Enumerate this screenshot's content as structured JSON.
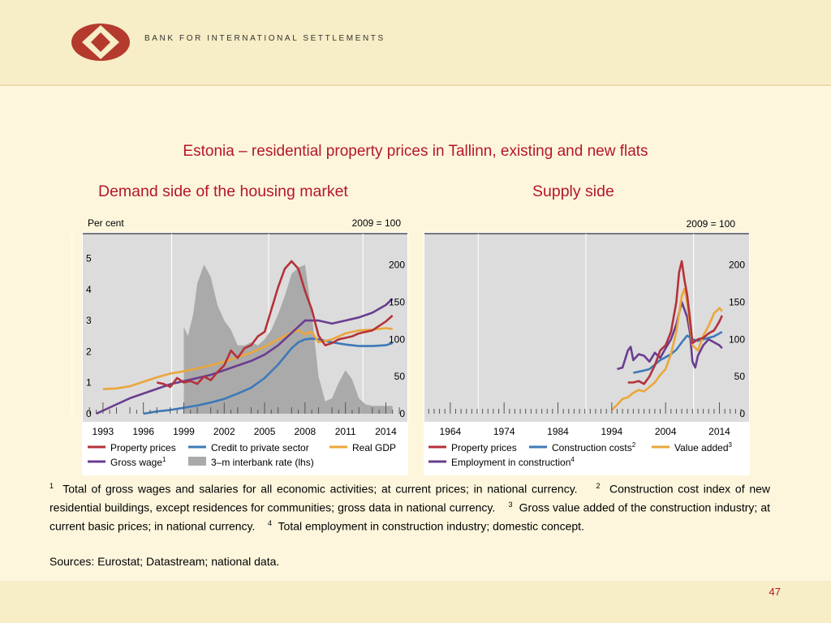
{
  "header": {
    "brand": "BANK FOR INTERNATIONAL SETTLEMENTS"
  },
  "title": "Estonia – residential property prices in Tallinn, existing and new flats",
  "colors": {
    "accent": "#b4172b",
    "red": "#b5313a",
    "blue": "#3d79b8",
    "orange": "#eba63b",
    "purple": "#6a3d8f",
    "grey": "#aaaaaa"
  },
  "chart_data": [
    {
      "type": "line",
      "title": "Demand side of the housing market",
      "left_axis_unit": "Per cent",
      "right_axis_unit": "2009 = 100",
      "x_ticks": [
        "1993",
        "1996",
        "1999",
        "2002",
        "2005",
        "2008",
        "2011",
        "2014"
      ],
      "ylim_left": [
        0,
        5.5
      ],
      "yticks_left": [
        "0",
        "1",
        "2",
        "3",
        "4",
        "5"
      ],
      "ylim_right": [
        0,
        220
      ],
      "yticks_right": [
        "0",
        "50",
        "100",
        "150",
        "200"
      ],
      "series": [
        {
          "name": "Property prices",
          "axis": "right",
          "color": "#b5313a",
          "x": [
            1997,
            1997.5,
            1998,
            1998.5,
            1999,
            1999.5,
            2000,
            2000.5,
            2001,
            2001.5,
            2002,
            2002.5,
            2003,
            2003.5,
            2004,
            2004.5,
            2005,
            2005.5,
            2006,
            2006.5,
            2007,
            2007.5,
            2008,
            2008.5,
            2009,
            2009.5,
            2010,
            2010.5,
            2011,
            2011.5,
            2012,
            2012.5,
            2013,
            2013.5,
            2014,
            2014.5
          ],
          "y": [
            42,
            40,
            36,
            48,
            42,
            44,
            40,
            50,
            45,
            56,
            65,
            85,
            75,
            88,
            92,
            104,
            110,
            140,
            170,
            195,
            205,
            195,
            165,
            140,
            105,
            92,
            95,
            100,
            102,
            104,
            108,
            110,
            112,
            118,
            124,
            132
          ]
        },
        {
          "name": "Credit to private sector",
          "axis": "right",
          "color": "#3d79b8",
          "x": [
            1996,
            1997,
            1998,
            1999,
            2000,
            2001,
            2002,
            2003,
            2004,
            2005,
            2006,
            2007,
            2007.5,
            2008,
            2008.5,
            2009,
            2010,
            2011,
            2012,
            2013,
            2014,
            2014.5
          ],
          "y": [
            0,
            3,
            5,
            8,
            11,
            15,
            20,
            27,
            35,
            48,
            66,
            88,
            96,
            100,
            101,
            100,
            96,
            93,
            91,
            91,
            92,
            95
          ]
        },
        {
          "name": "Real GDP",
          "axis": "right",
          "color": "#eba63b",
          "x": [
            1993,
            1994,
            1995,
            1996,
            1997,
            1998,
            1999,
            2000,
            2001,
            2002,
            2003,
            2004,
            2005,
            2006,
            2007,
            2007.5,
            2008,
            2008.5,
            2009,
            2010,
            2011,
            2012,
            2013,
            2014,
            2014.5
          ],
          "y": [
            33,
            34,
            37,
            43,
            49,
            54,
            57,
            61,
            65,
            70,
            76,
            82,
            90,
            100,
            109,
            112,
            107,
            110,
            96,
            100,
            108,
            112,
            113,
            115,
            114
          ]
        },
        {
          "name": "Gross wage",
          "axis": "left",
          "sup": "1",
          "color": "#6a3d8f",
          "x": [
            1992.5,
            1993,
            1994,
            1995,
            1996,
            1997,
            1998,
            1999,
            2000,
            2001,
            2002,
            2003,
            2004,
            2005,
            2006,
            2007,
            2008,
            2009,
            2010,
            2011,
            2012,
            2013,
            2014,
            2014.5
          ],
          "y": [
            0.0,
            0.1,
            0.3,
            0.5,
            0.65,
            0.8,
            0.95,
            1.05,
            1.15,
            1.25,
            1.4,
            1.55,
            1.7,
            1.9,
            2.2,
            2.6,
            3.0,
            3.0,
            2.9,
            3.0,
            3.1,
            3.25,
            3.5,
            3.7
          ]
        },
        {
          "name": "3–m interbank rate (lhs)",
          "axis": "left",
          "type": "area",
          "color": "#aaaaaa",
          "x": [
            1999,
            1999.3,
            1999.7,
            2000,
            2000.5,
            2001,
            2001.5,
            2002,
            2002.5,
            2003,
            2003.5,
            2004,
            2004.5,
            2005,
            2005.5,
            2006,
            2006.5,
            2007,
            2007.5,
            2008,
            2008.5,
            2009,
            2009.5,
            2010,
            2010.5,
            2011,
            2011.5,
            2012,
            2012.5,
            2013,
            2014,
            2014.5
          ],
          "y": [
            2.8,
            2.5,
            3.2,
            4.2,
            4.8,
            4.4,
            3.5,
            3.0,
            2.7,
            2.2,
            2.2,
            2.3,
            2.2,
            2.4,
            2.7,
            3.2,
            3.8,
            4.5,
            4.7,
            4.8,
            3.2,
            1.2,
            0.4,
            0.5,
            1.0,
            1.4,
            1.1,
            0.5,
            0.3,
            0.25,
            0.25,
            0.25
          ]
        }
      ]
    },
    {
      "type": "line",
      "title": "Supply side",
      "right_axis_unit": "2009 = 100",
      "x_ticks": [
        "1964",
        "1974",
        "1984",
        "1994",
        "2004",
        "2014"
      ],
      "ylim_right": [
        0,
        220
      ],
      "yticks_right": [
        "0",
        "50",
        "100",
        "150",
        "200"
      ],
      "series": [
        {
          "name": "Property prices",
          "color": "#b5313a",
          "x": [
            1997,
            1998,
            1999,
            2000,
            2001,
            2002,
            2003,
            2004,
            2005,
            2006,
            2006.5,
            2007,
            2007.5,
            2008,
            2008.5,
            2009,
            2010,
            2011,
            2012,
            2013,
            2014,
            2014.5
          ],
          "y": [
            42,
            42,
            44,
            40,
            50,
            65,
            85,
            92,
            110,
            150,
            190,
            205,
            180,
            160,
            130,
            95,
            100,
            102,
            108,
            112,
            124,
            132
          ]
        },
        {
          "name": "Construction costs",
          "sup": "2",
          "color": "#3d79b8",
          "x": [
            1998,
            2000,
            2001,
            2002,
            2003,
            2004,
            2005,
            2006,
            2007,
            2008,
            2009,
            2010,
            2011,
            2012,
            2013,
            2014,
            2014.5
          ],
          "y": [
            55,
            58,
            60,
            66,
            72,
            76,
            80,
            86,
            96,
            105,
            100,
            98,
            100,
            102,
            104,
            108,
            110
          ]
        },
        {
          "name": "Value added",
          "sup": "3",
          "color": "#eba63b",
          "x": [
            1994,
            1995,
            1996,
            1997,
            1998,
            1999,
            2000,
            2001,
            2002,
            2003,
            2004,
            2005,
            2006,
            2007,
            2007.5,
            2008,
            2008.5,
            2009,
            2010,
            2011,
            2012,
            2013,
            2014,
            2014.5
          ],
          "y": [
            5,
            12,
            20,
            22,
            28,
            32,
            30,
            36,
            42,
            52,
            60,
            80,
            110,
            158,
            168,
            150,
            120,
            92,
            85,
            105,
            118,
            135,
            142,
            138
          ]
        },
        {
          "name": "Employment in construction",
          "sup": "4",
          "color": "#6a3d8f",
          "x": [
            1995,
            1996,
            1997,
            1997.5,
            1998,
            1999,
            2000,
            2001,
            2002,
            2003,
            2004,
            2005,
            2006,
            2007,
            2007.5,
            2008,
            2008.5,
            2009,
            2009.5,
            2010,
            2011,
            2012,
            2013,
            2014,
            2014.5
          ],
          "y": [
            60,
            62,
            85,
            90,
            72,
            80,
            78,
            70,
            82,
            75,
            88,
            100,
            120,
            150,
            140,
            130,
            110,
            70,
            62,
            78,
            92,
            100,
            96,
            92,
            88
          ]
        }
      ]
    }
  ],
  "footnotes": {
    "n1": "1",
    "t1": "Total of gross wages and salaries for all economic activities; at current prices; in national currency.",
    "n2": "2",
    "t2": "Construction cost index of new residential buildings, except residences for communities; gross data in national currency.",
    "n3": "3",
    "t3": "Gross value added of the construction industry; at current basic prices; in national currency.",
    "n4": "4",
    "t4": "Total employment in construction industry; domestic concept."
  },
  "sources": "Sources: Eurostat; Datastream; national data.",
  "page_number": "47"
}
